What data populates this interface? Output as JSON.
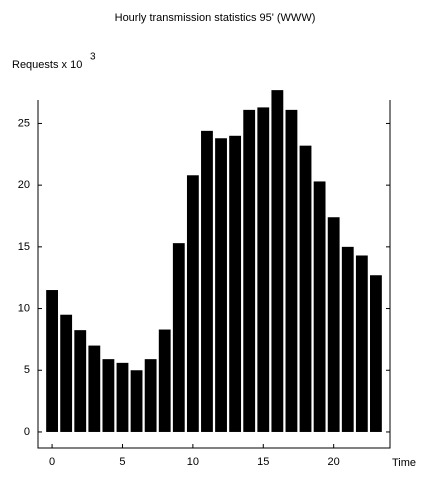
{
  "chart_data": {
    "type": "bar",
    "title": "Hourly transmission statistics 95' (WWW)",
    "ylabel": "Requests x 10",
    "ylabel_superscript": "3",
    "xlabel": "Time",
    "x": [
      0,
      1,
      2,
      3,
      4,
      5,
      6,
      7,
      8,
      9,
      10,
      11,
      12,
      13,
      14,
      15,
      16,
      17,
      18,
      19,
      20,
      21,
      22,
      23
    ],
    "values": [
      11.5,
      9.5,
      8.25,
      7.0,
      5.9,
      5.6,
      5.0,
      5.9,
      8.3,
      15.3,
      20.8,
      24.4,
      23.8,
      24.0,
      26.1,
      26.3,
      27.7,
      26.1,
      23.2,
      20.3,
      17.4,
      15.0,
      14.3,
      12.7
    ],
    "color": "#000000",
    "xlim": [
      -1,
      24
    ],
    "xticks": [
      0,
      5,
      10,
      15,
      20
    ],
    "ylim": [
      -1.3,
      26.9
    ],
    "yticks": [
      0,
      5,
      10,
      15,
      20,
      25
    ],
    "grid": false
  }
}
